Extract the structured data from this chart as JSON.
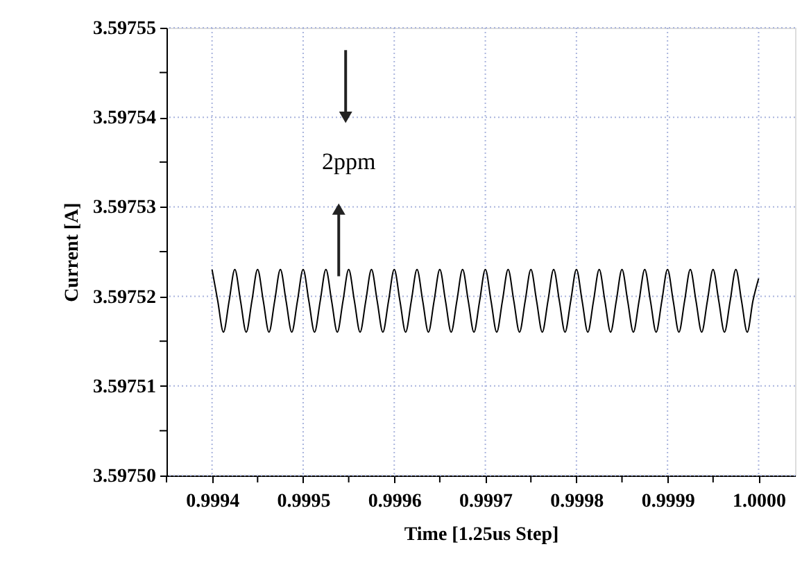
{
  "chart_data": {
    "type": "line",
    "xlabel": "Time [1.25us Step]",
    "ylabel": "Current [A]",
    "x": [
      0.9994,
      0.99940625,
      0.9994125,
      0.99941875,
      0.999425,
      0.99943125,
      0.9994375,
      0.99944375,
      0.99945,
      0.99945625,
      0.9994625,
      0.99946875,
      0.999475,
      0.99948125,
      0.9994875,
      0.99949375,
      0.9995,
      0.99950625,
      0.9995125,
      0.99951875,
      0.999525,
      0.99953125,
      0.9995375,
      0.99954375,
      0.99955,
      0.99955625,
      0.9995625,
      0.99956875,
      0.999575,
      0.99958125,
      0.9995875,
      0.99959375,
      0.9996,
      0.99960625,
      0.9996125,
      0.99961875,
      0.999625,
      0.99963125,
      0.9996375,
      0.99964375,
      0.99965,
      0.99965625,
      0.9996625,
      0.99966875,
      0.999675,
      0.99968125,
      0.9996875,
      0.99969375,
      0.9997,
      0.99970625,
      0.9997125,
      0.99971875,
      0.999725,
      0.99973125,
      0.9997375,
      0.99974375,
      0.99975,
      0.99975625,
      0.9997625,
      0.99976875,
      0.999775,
      0.99978125,
      0.9997875,
      0.99979375,
      0.9998,
      0.99980625,
      0.9998125,
      0.99981875,
      0.999825,
      0.99983125,
      0.9998375,
      0.99984375,
      0.99985,
      0.99985625,
      0.9998625,
      0.99986875,
      0.999875,
      0.99988125,
      0.9998875,
      0.99989375,
      0.9999,
      0.99990625,
      0.9999125,
      0.99991875,
      0.999925,
      0.99993125,
      0.9999375,
      0.99994375,
      0.99995,
      0.99995625,
      0.9999625,
      0.99996875,
      0.999975,
      0.99998125,
      0.9999875,
      0.99999375,
      1.0
    ],
    "series": [
      {
        "color": "#000000",
        "values": [
          3.597523,
          3.5975195,
          3.597516,
          3.5975195,
          3.597523,
          3.5975195,
          3.597516,
          3.5975195,
          3.597523,
          3.5975195,
          3.597516,
          3.5975195,
          3.597523,
          3.5975195,
          3.597516,
          3.5975195,
          3.597523,
          3.5975195,
          3.597516,
          3.5975195,
          3.597523,
          3.5975195,
          3.597516,
          3.5975195,
          3.597523,
          3.5975195,
          3.597516,
          3.5975195,
          3.597523,
          3.5975195,
          3.597516,
          3.5975195,
          3.597523,
          3.5975195,
          3.597516,
          3.5975195,
          3.597523,
          3.5975195,
          3.597516,
          3.5975195,
          3.597523,
          3.5975195,
          3.597516,
          3.5975195,
          3.597523,
          3.5975195,
          3.597516,
          3.5975195,
          3.597523,
          3.5975195,
          3.597516,
          3.5975195,
          3.597523,
          3.5975195,
          3.597516,
          3.5975195,
          3.597523,
          3.5975195,
          3.597516,
          3.5975195,
          3.597523,
          3.5975195,
          3.597516,
          3.5975195,
          3.597523,
          3.5975195,
          3.597516,
          3.5975195,
          3.597523,
          3.5975195,
          3.597516,
          3.5975195,
          3.597523,
          3.5975195,
          3.597516,
          3.5975195,
          3.597523,
          3.5975195,
          3.597516,
          3.5975195,
          3.597523,
          3.5975195,
          3.597516,
          3.5975195,
          3.597523,
          3.5975195,
          3.597516,
          3.5975195,
          3.597523,
          3.5975195,
          3.597516,
          3.5975195,
          3.597523,
          3.5975195,
          3.597516,
          3.5975195,
          3.597522
        ]
      }
    ],
    "xlim": [
      0.99935,
      1.00004
    ],
    "xticks": [
      {
        "value": 0.99935,
        "label": null
      },
      0.9994,
      {
        "value": 0.99945,
        "label": null
      },
      0.9995,
      {
        "value": 0.99955,
        "label": null
      },
      0.9996,
      {
        "value": 0.99965,
        "label": null
      },
      0.9997,
      {
        "value": 0.99975,
        "label": null
      },
      0.9998,
      {
        "value": 0.99985,
        "label": null
      },
      0.9999,
      {
        "value": 0.99995,
        "label": null
      },
      {
        "value": 1.0,
        "label": "1.0000"
      }
    ],
    "ylim": [
      3.5975,
      3.59755
    ],
    "yticks": [
      {
        "value": 3.5975,
        "label": "3.59750"
      },
      {
        "value": 3.597505,
        "label": null
      },
      3.59751,
      {
        "value": 3.597515,
        "label": null
      },
      3.59752,
      {
        "value": 3.597525,
        "label": null
      },
      3.59753,
      {
        "value": 3.597535,
        "label": null
      },
      3.59754,
      {
        "value": 3.597545,
        "label": null
      },
      3.59755
    ],
    "grid": true,
    "marker": "none",
    "line_style": "solid",
    "annotations": [
      "2ppm"
    ]
  }
}
